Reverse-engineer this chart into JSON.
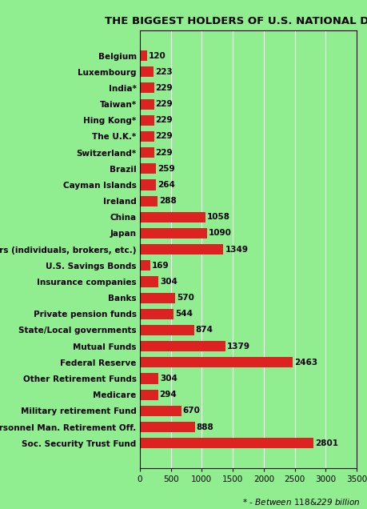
{
  "title": "THE BIGGEST HOLDERS OF U.S. NATIONAL DEBT",
  "footnote": "* - Between $118 & $229 billion",
  "background_color": "#90EE90",
  "plot_background": "#90EE90",
  "bar_color": "#DD2222",
  "categories": [
    "Belgium",
    "Luxembourg",
    "India*",
    "Taiwan*",
    "Hing Kong*",
    "The U.K.*",
    "Switzerland*",
    "Brazil",
    "Cayman Islands",
    "Ireland",
    "China",
    "Japan",
    "Others (individuals, brokers, etc.)",
    "U.S. Savings Bonds",
    "Insurance companies",
    "Banks",
    "Private pension funds",
    "State/Local governments",
    "Mutual Funds",
    "Federal Reserve",
    "Other Retirement Funds",
    "Medicare",
    "Military retirement Fund",
    "Personnel Man. Retirement Off.",
    "Soc. Security Trust Fund"
  ],
  "values": [
    120,
    223,
    229,
    229,
    229,
    229,
    229,
    259,
    264,
    288,
    1058,
    1090,
    1349,
    169,
    304,
    570,
    544,
    874,
    1379,
    2463,
    304,
    294,
    670,
    888,
    2801
  ],
  "xlim": [
    0,
    3500
  ],
  "xticks": [
    0,
    500,
    1000,
    1500,
    2000,
    2500,
    3000,
    3500
  ],
  "title_fontsize": 9.5,
  "label_fontsize": 7.5,
  "value_fontsize": 7.5,
  "footnote_fontsize": 7.5,
  "bar_height": 0.65
}
